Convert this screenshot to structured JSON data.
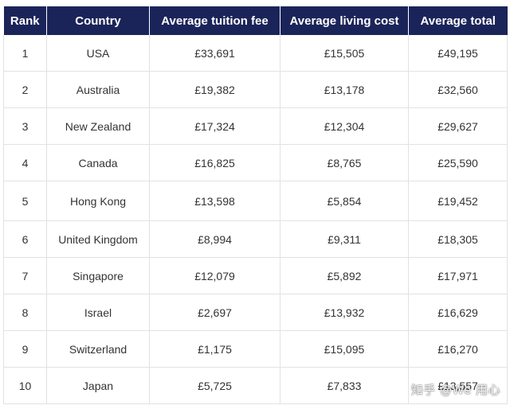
{
  "table": {
    "headers": [
      "Rank",
      "Country",
      "Average tuition fee",
      "Average living cost",
      "Average total"
    ],
    "rows": [
      [
        "1",
        "USA",
        "£33,691",
        "£15,505",
        "£49,195"
      ],
      [
        "2",
        "Australia",
        "£19,382",
        "£13,178",
        "£32,560"
      ],
      [
        "3",
        "New Zealand",
        "£17,324",
        "£12,304",
        "£29,627"
      ],
      [
        "4",
        "Canada",
        "£16,825",
        "£8,765",
        "£25,590"
      ],
      [
        "5",
        "Hong Kong",
        "£13,598",
        "£5,854",
        "£19,452"
      ],
      [
        "6",
        "United Kingdom",
        "£8,994",
        "£9,311",
        "£18,305"
      ],
      [
        "7",
        "Singapore",
        "£12,079",
        "£5,892",
        "£17,971"
      ],
      [
        "8",
        "Israel",
        "£2,697",
        "£13,932",
        "£16,629"
      ],
      [
        "9",
        "Switzerland",
        "£1,175",
        "£15,095",
        "£16,270"
      ],
      [
        "10",
        "Japan",
        "£5,725",
        "£7,833",
        "£13,557"
      ]
    ]
  },
  "watermark": "知乎 @We 用心",
  "colors": {
    "header_background": "#1b2459",
    "header_text": "#ffffff",
    "cell_text": "#333333",
    "grid_line": "#e2e2e2"
  }
}
